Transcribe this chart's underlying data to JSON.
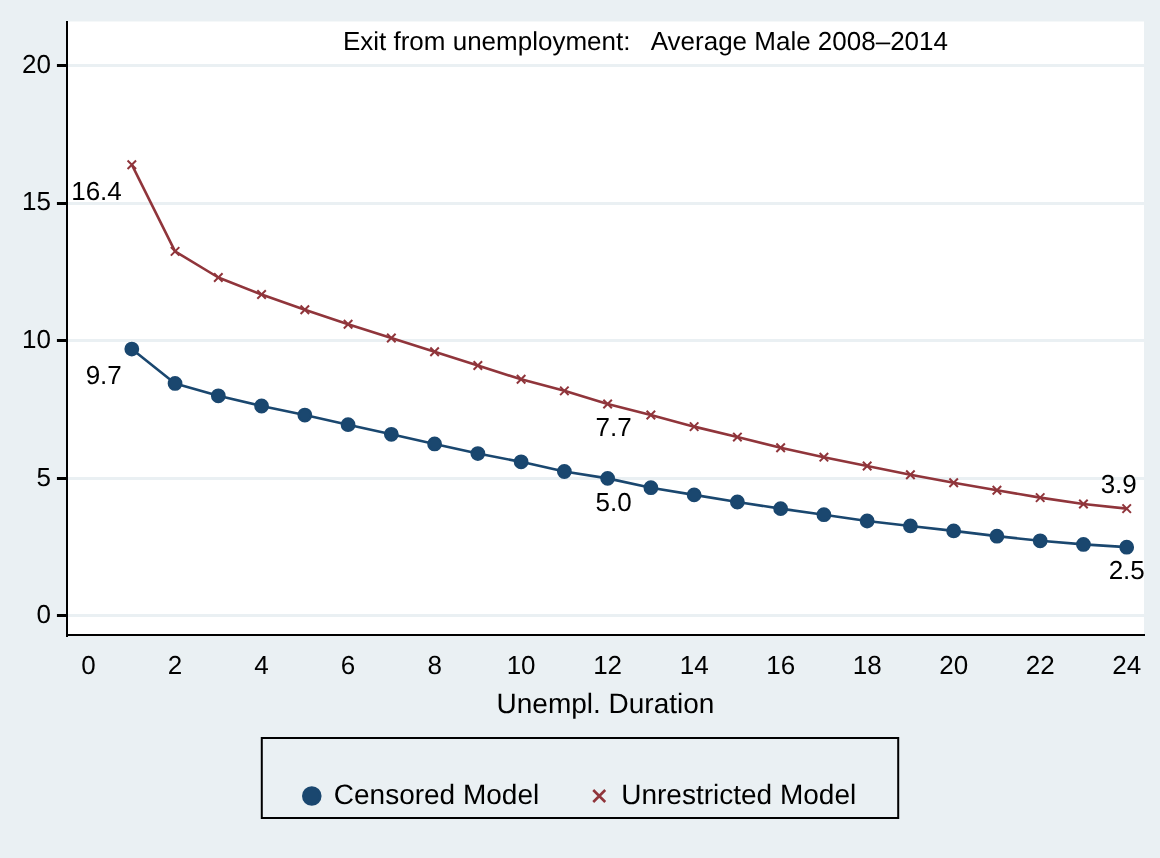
{
  "chart_data": {
    "type": "line",
    "title": "Exit from unemployment:   Average Male 2008–2014",
    "xlabel": "Unempl. Duration",
    "x": [
      1,
      2,
      3,
      4,
      5,
      6,
      7,
      8,
      9,
      10,
      11,
      12,
      13,
      14,
      15,
      16,
      17,
      18,
      19,
      20,
      21,
      22,
      23,
      24
    ],
    "series": [
      {
        "name": "Censored Model",
        "color": "#1a476f",
        "marker": "circle",
        "values": [
          9.7,
          8.45,
          8.0,
          7.63,
          7.3,
          6.95,
          6.6,
          6.25,
          5.9,
          5.6,
          5.25,
          5.0,
          4.66,
          4.4,
          4.14,
          3.9,
          3.68,
          3.45,
          3.27,
          3.09,
          2.9,
          2.73,
          2.6,
          2.5
        ],
        "value_labels": [
          "9.7",
          null,
          null,
          null,
          null,
          null,
          null,
          null,
          null,
          null,
          null,
          "5.0",
          null,
          null,
          null,
          null,
          null,
          null,
          null,
          null,
          null,
          null,
          null,
          "2.5"
        ]
      },
      {
        "name": "Unrestricted Model",
        "color": "#90353b",
        "marker": "cross",
        "values": [
          16.4,
          13.25,
          12.3,
          11.68,
          11.13,
          10.6,
          10.1,
          9.6,
          9.1,
          8.6,
          8.18,
          7.7,
          7.3,
          6.88,
          6.5,
          6.11,
          5.77,
          5.45,
          5.13,
          4.84,
          4.57,
          4.3,
          4.07,
          3.9
        ],
        "value_labels": [
          "16.4",
          null,
          null,
          null,
          null,
          null,
          null,
          null,
          null,
          null,
          null,
          "7.7",
          null,
          null,
          null,
          null,
          null,
          null,
          null,
          null,
          null,
          null,
          null,
          "3.9"
        ]
      }
    ],
    "xlim": [
      -0.5,
      24.4
    ],
    "xticks": [
      0,
      2,
      4,
      6,
      8,
      10,
      12,
      14,
      16,
      18,
      20,
      22,
      24
    ],
    "ylim": [
      -0.7,
      21.6
    ],
    "yticks": [
      0,
      5,
      10,
      15,
      20
    ],
    "grid": "y",
    "legend": "bottom",
    "line_style": "solid"
  }
}
